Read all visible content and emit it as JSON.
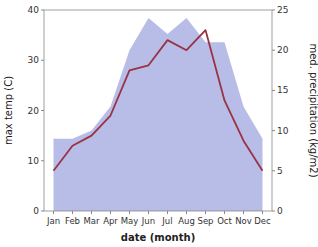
{
  "chart_data": {
    "type": "line",
    "categories": [
      "Jan",
      "Feb",
      "Mar",
      "Apr",
      "May",
      "Jun",
      "Jul",
      "Aug",
      "Sep",
      "Oct",
      "Nov",
      "Dec"
    ],
    "series": [
      {
        "type": "area",
        "color": "#b8bde8",
        "axis": "y2",
        "values": [
          9,
          9,
          10,
          13,
          20,
          24,
          22,
          24,
          21,
          21,
          13,
          9
        ]
      },
      {
        "type": "line",
        "color": "#993344",
        "values": [
          8,
          13,
          15,
          19,
          28,
          29,
          34,
          32,
          36,
          22,
          14,
          8
        ]
      }
    ],
    "xlabel": "date (month)",
    "ylabel": "max temp (C)",
    "y2label": "med. precipitation (kg/m2)",
    "ylim": [
      0,
      40
    ],
    "yticks": [
      0,
      10,
      20,
      30,
      40
    ],
    "y2lim": [
      0,
      25
    ],
    "y2ticks": [
      0,
      5,
      10,
      15,
      20,
      25
    ],
    "grid": false
  }
}
